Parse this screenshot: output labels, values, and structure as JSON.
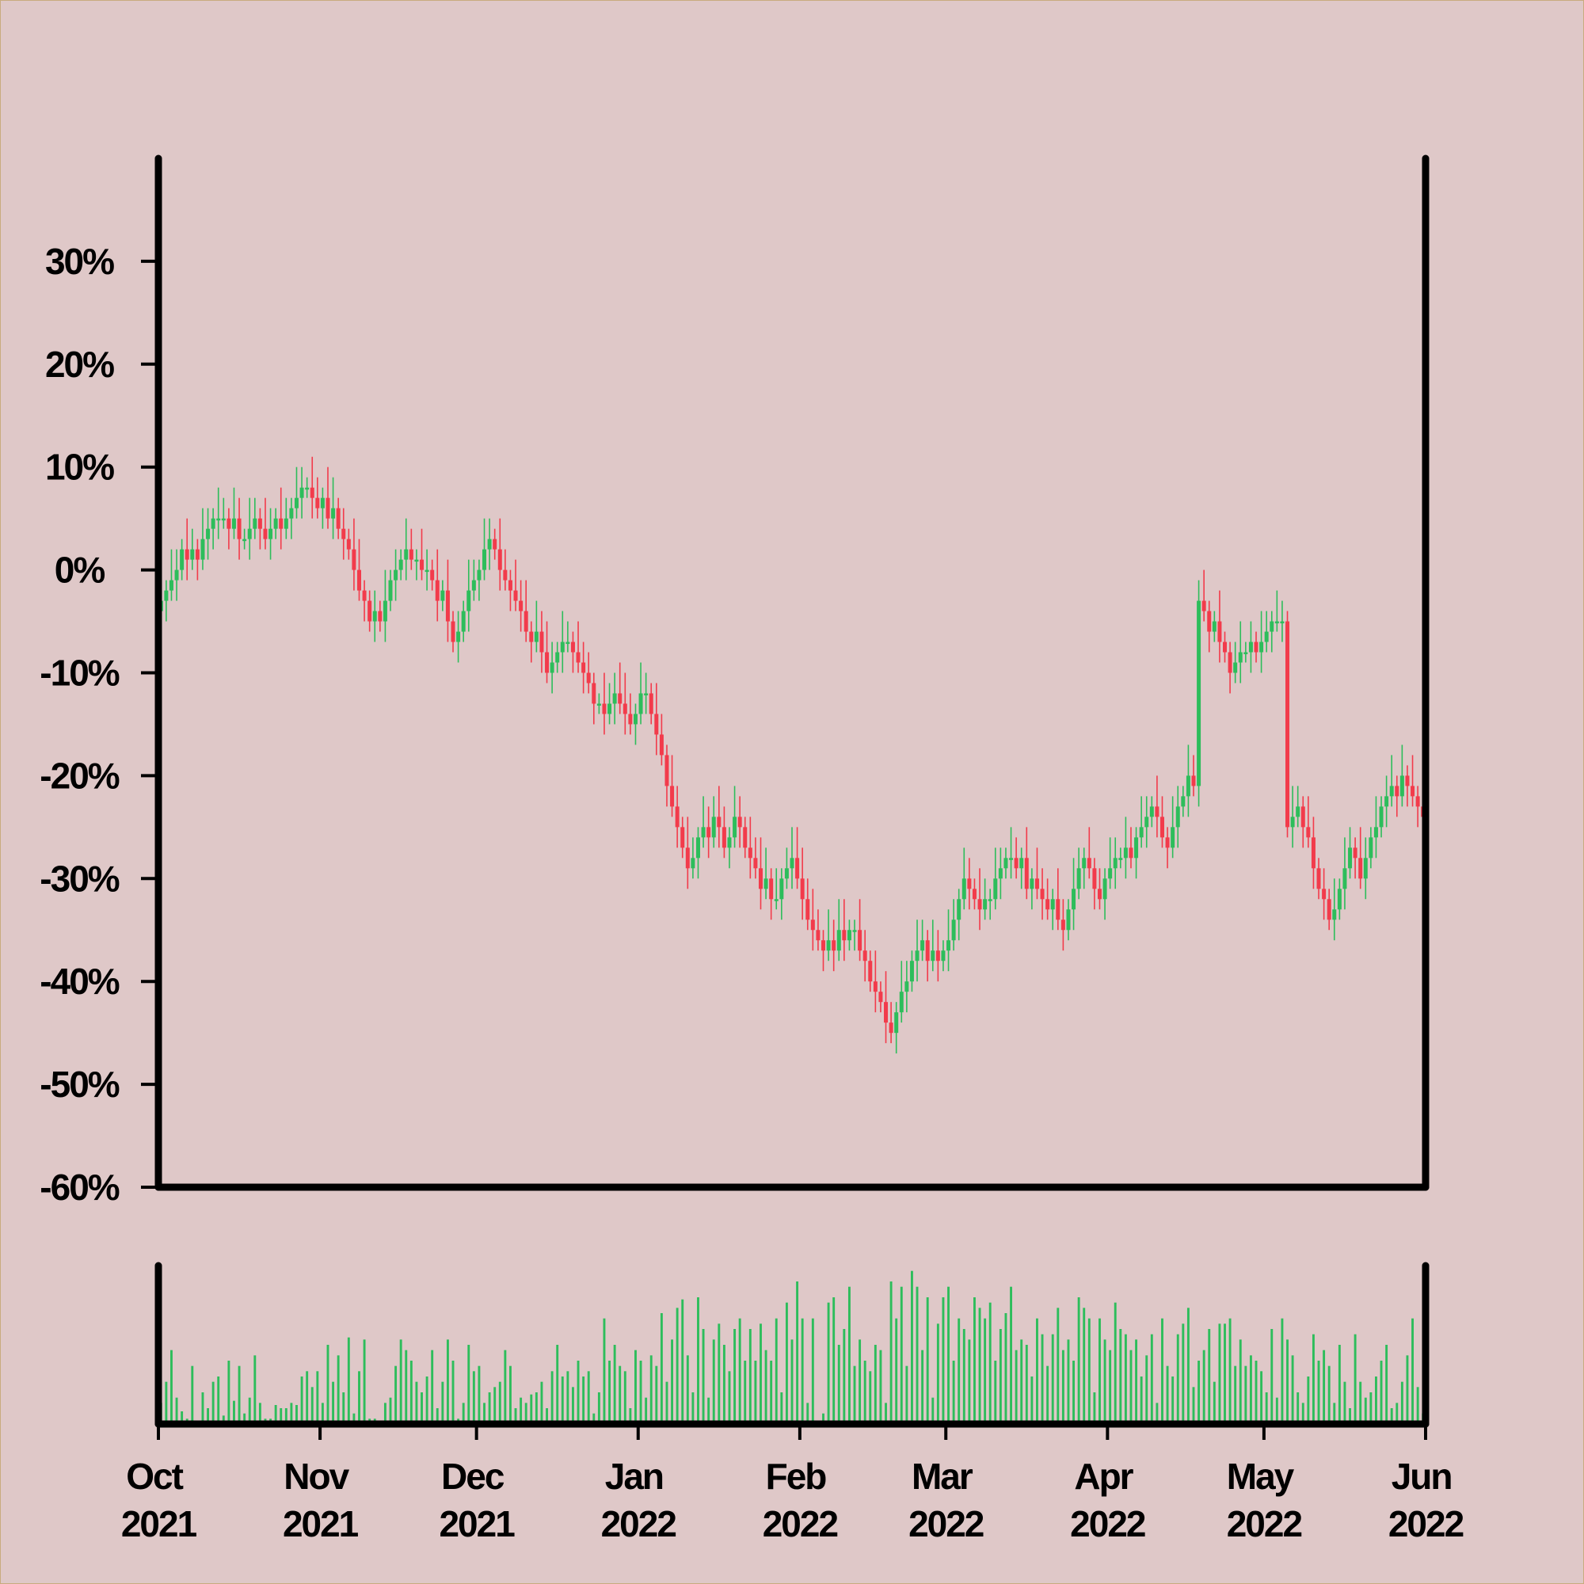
{
  "chart_data": {
    "type": "candlestick",
    "xlim": [
      "2021-10",
      "2022-06"
    ],
    "xticks": [
      {
        "value": "2021-10",
        "label": "Oct 2021"
      },
      {
        "value": "2021-11",
        "label": "Nov 2021"
      },
      {
        "value": "2021-12",
        "label": "Dec 2021"
      },
      {
        "value": "2022-01",
        "label": "Jan 2022"
      },
      {
        "value": "2022-02",
        "label": "Feb 2022"
      },
      {
        "value": "2022-03",
        "label": "Mar 2022"
      },
      {
        "value": "2022-04",
        "label": "Apr 2022"
      },
      {
        "value": "2022-05",
        "label": "May 2022"
      },
      {
        "value": "2022-06",
        "label": "Jun 2022"
      }
    ],
    "ylim": [
      -60,
      40
    ],
    "yticks": [
      {
        "value": -60,
        "label": "-60%"
      },
      {
        "value": -50,
        "label": "-50%"
      },
      {
        "value": -40,
        "label": "-40%"
      },
      {
        "value": -30,
        "label": "-30%"
      },
      {
        "value": -20,
        "label": "-20%"
      },
      {
        "value": -10,
        "label": "-10%"
      },
      {
        "value": 0,
        "label": "0%"
      },
      {
        "value": 10,
        "label": "10%"
      },
      {
        "value": 20,
        "label": "20%"
      },
      {
        "value": 30,
        "label": "30%"
      }
    ],
    "volume_ylim": [
      0,
      150
    ],
    "up_color": "#2dbd5b",
    "down_color": "#f23b4b",
    "volume_color": "#2dbd5b",
    "open": [
      -4,
      -3,
      -2,
      -1,
      0,
      2,
      1,
      2,
      1,
      3,
      4,
      5,
      5,
      5,
      4,
      5,
      3,
      3,
      4,
      5,
      4,
      3,
      4,
      5,
      4,
      5,
      6,
      7,
      8,
      8,
      7,
      6,
      7,
      5,
      6,
      4,
      3,
      2,
      0,
      -2,
      -3,
      -5,
      -4,
      -5,
      -3,
      -1,
      0,
      1,
      2,
      1,
      1,
      0,
      0,
      -1,
      -3,
      -2,
      -5,
      -7,
      -6,
      -4,
      -2,
      -1,
      0,
      2,
      3,
      2,
      0,
      -1,
      -2,
      -3,
      -4,
      -6,
      -7,
      -6,
      -8,
      -10,
      -9,
      -8,
      -7,
      -7,
      -8,
      -9,
      -10,
      -11,
      -13,
      -13,
      -14,
      -13,
      -12,
      -13,
      -14,
      -15,
      -14,
      -12,
      -12,
      -14,
      -16,
      -18,
      -21,
      -23,
      -25,
      -27,
      -29,
      -28,
      -26,
      -25,
      -26,
      -24,
      -25,
      -27,
      -26,
      -24,
      -25,
      -27,
      -28,
      -29,
      -31,
      -30,
      -32,
      -32,
      -30,
      -29,
      -28,
      -30,
      -32,
      -34,
      -35,
      -36,
      -37,
      -36,
      -37,
      -35,
      -36,
      -35,
      -35,
      -37,
      -38,
      -40,
      -41,
      -42,
      -44,
      -45,
      -43,
      -41,
      -40,
      -38,
      -37,
      -36,
      -38,
      -37,
      -38,
      -37,
      -36,
      -34,
      -32,
      -30,
      -31,
      -32,
      -33,
      -32,
      -32,
      -30,
      -29,
      -28,
      -28,
      -29,
      -28,
      -31,
      -30,
      -31,
      -32,
      -33,
      -32,
      -34,
      -35,
      -33,
      -31,
      -29,
      -28,
      -29,
      -31,
      -32,
      -30,
      -29,
      -28,
      -28,
      -27,
      -28,
      -26,
      -25,
      -24,
      -23,
      -24,
      -26,
      -27,
      -25,
      -23,
      -22,
      -20,
      -21,
      -3,
      -4,
      -6,
      -5,
      -7,
      -8,
      -10,
      -9,
      -8,
      -8,
      -7,
      -8,
      -7,
      -6,
      -5,
      -5,
      -5,
      -25,
      -24,
      -23,
      -25,
      -26,
      -29,
      -31,
      -32,
      -34,
      -33,
      -31,
      -29,
      -27,
      -28,
      -30,
      -28,
      -26,
      -25,
      -23,
      -22,
      -21,
      -22,
      -20,
      -21,
      -22,
      -23
    ],
    "high": [
      -1,
      -1,
      2,
      2,
      3,
      5,
      4,
      3,
      6,
      6,
      6,
      8,
      7,
      6,
      8,
      7,
      4,
      7,
      7,
      6,
      7,
      6,
      6,
      8,
      7,
      7,
      10,
      10,
      9,
      11,
      9,
      8,
      10,
      9,
      7,
      6,
      4,
      5,
      3,
      -1,
      -2,
      -2,
      -3,
      0,
      0,
      2,
      2,
      5,
      4,
      2,
      4,
      2,
      1,
      2,
      -1,
      1,
      -4,
      -4,
      -3,
      1,
      1,
      1,
      5,
      5,
      4,
      5,
      2,
      0,
      1,
      -1,
      -1,
      -5,
      -3,
      -4,
      -5,
      -7,
      -7,
      -4,
      -5,
      -6,
      -5,
      -7,
      -8,
      -10,
      -12,
      -10,
      -11,
      -10,
      -9,
      -10,
      -12,
      -13,
      -9,
      -10,
      -11,
      -11,
      -14,
      -17,
      -18,
      -21,
      -24,
      -24,
      -26,
      -25,
      -22,
      -23,
      -22,
      -21,
      -23,
      -25,
      -21,
      -22,
      -24,
      -24,
      -26,
      -26,
      -27,
      -29,
      -29,
      -29,
      -27,
      -25,
      -25,
      -27,
      -30,
      -31,
      -33,
      -35,
      -33,
      -34,
      -32,
      -32,
      -34,
      -34,
      -32,
      -35,
      -37,
      -37,
      -40,
      -39,
      -42,
      -42,
      -38,
      -38,
      -37,
      -34,
      -34,
      -35,
      -34,
      -35,
      -36,
      -33,
      -32,
      -31,
      -27,
      -28,
      -30,
      -29,
      -30,
      -31,
      -27,
      -27,
      -27,
      -25,
      -26,
      -27,
      -25,
      -29,
      -27,
      -29,
      -30,
      -31,
      -29,
      -32,
      -32,
      -28,
      -27,
      -27,
      -25,
      -28,
      -29,
      -29,
      -26,
      -26,
      -27,
      -24,
      -25,
      -25,
      -22,
      -22,
      -22,
      -20,
      -22,
      -25,
      -22,
      -21,
      -21,
      -17,
      -18,
      -1,
      0,
      -3,
      -4,
      -2,
      -6,
      -7,
      -7,
      -5,
      -7,
      -5,
      -6,
      -4,
      -4,
      -4,
      -2,
      -3,
      -4,
      -21,
      -21,
      -22,
      -22,
      -24,
      -28,
      -29,
      -31,
      -30,
      -30,
      -26,
      -25,
      -26,
      -25,
      -26,
      -25,
      -22,
      -22,
      -20,
      -18,
      -20,
      -17,
      -19,
      -18,
      -21,
      -21
    ],
    "low": [
      -5,
      -5,
      -3,
      -3,
      -1,
      -1,
      0,
      -1,
      0,
      1,
      2,
      3,
      4,
      2,
      3,
      1,
      2,
      1,
      3,
      2,
      2,
      1,
      3,
      2,
      3,
      3,
      5,
      5,
      7,
      5,
      5,
      4,
      4,
      3,
      3,
      1,
      1,
      -2,
      -3,
      -5,
      -6,
      -7,
      -6,
      -7,
      -4,
      -3,
      -1,
      -1,
      0,
      -1,
      -1,
      -2,
      -2,
      -5,
      -4,
      -7,
      -8,
      -9,
      -7,
      -6,
      -3,
      -3,
      -1,
      0,
      1,
      -2,
      -2,
      -4,
      -4,
      -6,
      -7,
      -9,
      -8,
      -10,
      -11,
      -12,
      -10,
      -10,
      -8,
      -10,
      -10,
      -12,
      -12,
      -15,
      -14,
      -16,
      -15,
      -15,
      -14,
      -16,
      -16,
      -17,
      -15,
      -14,
      -15,
      -18,
      -19,
      -23,
      -24,
      -27,
      -28,
      -31,
      -30,
      -30,
      -27,
      -28,
      -27,
      -27,
      -28,
      -29,
      -27,
      -27,
      -28,
      -30,
      -30,
      -33,
      -32,
      -34,
      -33,
      -34,
      -31,
      -31,
      -31,
      -34,
      -35,
      -37,
      -37,
      -39,
      -38,
      -39,
      -38,
      -38,
      -37,
      -37,
      -38,
      -40,
      -41,
      -43,
      -43,
      -46,
      -46,
      -47,
      -44,
      -43,
      -41,
      -40,
      -38,
      -40,
      -39,
      -40,
      -39,
      -39,
      -37,
      -36,
      -33,
      -33,
      -33,
      -35,
      -34,
      -34,
      -33,
      -32,
      -30,
      -30,
      -30,
      -31,
      -32,
      -33,
      -32,
      -34,
      -34,
      -35,
      -35,
      -37,
      -36,
      -35,
      -32,
      -31,
      -30,
      -33,
      -33,
      -34,
      -31,
      -31,
      -29,
      -30,
      -29,
      -30,
      -27,
      -27,
      -25,
      -26,
      -27,
      -29,
      -28,
      -27,
      -24,
      -24,
      -22,
      -23,
      -5,
      -8,
      -7,
      -9,
      -9,
      -12,
      -11,
      -11,
      -9,
      -10,
      -9,
      -10,
      -8,
      -8,
      -6,
      -7,
      -26,
      -27,
      -25,
      -27,
      -27,
      -31,
      -32,
      -34,
      -35,
      -36,
      -34,
      -33,
      -30,
      -30,
      -31,
      -32,
      -29,
      -28,
      -26,
      -25,
      -23,
      -24,
      -23,
      -23,
      -23,
      -25,
      -26
    ],
    "close": [
      -3,
      -2,
      -1,
      0,
      2,
      1,
      2,
      1,
      3,
      4,
      5,
      5,
      5,
      4,
      5,
      3,
      3,
      4,
      5,
      4,
      3,
      4,
      5,
      4,
      5,
      6,
      7,
      8,
      8,
      7,
      6,
      7,
      5,
      6,
      4,
      3,
      2,
      0,
      -2,
      -3,
      -5,
      -4,
      -5,
      -3,
      -1,
      0,
      1,
      2,
      1,
      1,
      0,
      0,
      -1,
      -3,
      -2,
      -5,
      -7,
      -6,
      -4,
      -2,
      -1,
      0,
      2,
      3,
      2,
      0,
      -1,
      -2,
      -3,
      -4,
      -6,
      -7,
      -6,
      -8,
      -10,
      -9,
      -8,
      -7,
      -7,
      -8,
      -9,
      -10,
      -11,
      -13,
      -13,
      -14,
      -13,
      -12,
      -13,
      -14,
      -15,
      -14,
      -12,
      -12,
      -14,
      -16,
      -18,
      -21,
      -23,
      -25,
      -27,
      -29,
      -28,
      -26,
      -25,
      -26,
      -24,
      -25,
      -27,
      -26,
      -24,
      -25,
      -27,
      -28,
      -29,
      -31,
      -30,
      -32,
      -32,
      -30,
      -29,
      -28,
      -30,
      -32,
      -34,
      -35,
      -36,
      -37,
      -36,
      -37,
      -35,
      -36,
      -35,
      -35,
      -37,
      -38,
      -40,
      -41,
      -42,
      -44,
      -45,
      -43,
      -41,
      -40,
      -38,
      -37,
      -36,
      -38,
      -37,
      -38,
      -37,
      -36,
      -34,
      -32,
      -30,
      -31,
      -32,
      -33,
      -32,
      -32,
      -30,
      -29,
      -28,
      -28,
      -29,
      -28,
      -31,
      -30,
      -31,
      -32,
      -33,
      -32,
      -34,
      -35,
      -33,
      -31,
      -29,
      -28,
      -29,
      -31,
      -32,
      -30,
      -29,
      -28,
      -28,
      -27,
      -28,
      -26,
      -25,
      -24,
      -23,
      -24,
      -26,
      -27,
      -25,
      -23,
      -22,
      -20,
      -21,
      -3,
      -4,
      -6,
      -5,
      -7,
      -8,
      -10,
      -9,
      -8,
      -8,
      -7,
      -8,
      -7,
      -6,
      -5,
      -5,
      -5,
      -25,
      -24,
      -23,
      -25,
      -26,
      -29,
      -31,
      -32,
      -34,
      -33,
      -31,
      -29,
      -27,
      -28,
      -30,
      -28,
      -26,
      -25,
      -23,
      -22,
      -21,
      -22,
      -20,
      -21,
      -22,
      -23,
      -24
    ],
    "volume": [
      20,
      40,
      70,
      25,
      12,
      5,
      55,
      3,
      30,
      15,
      40,
      45,
      8,
      60,
      22,
      55,
      10,
      25,
      65,
      20,
      5,
      5,
      18,
      15,
      15,
      20,
      18,
      45,
      50,
      35,
      50,
      20,
      75,
      40,
      65,
      30,
      82,
      10,
      50,
      80,
      5,
      5,
      0,
      20,
      25,
      55,
      80,
      70,
      60,
      40,
      30,
      45,
      70,
      15,
      40,
      80,
      60,
      5,
      20,
      75,
      50,
      55,
      20,
      30,
      35,
      40,
      70,
      55,
      15,
      25,
      20,
      28,
      30,
      40,
      15,
      50,
      75,
      45,
      50,
      35,
      60,
      45,
      50,
      10,
      30,
      100,
      60,
      75,
      55,
      50,
      15,
      70,
      60,
      25,
      65,
      55,
      105,
      40,
      80,
      110,
      118,
      65,
      30,
      120,
      90,
      25,
      80,
      95,
      75,
      50,
      90,
      100,
      60,
      90,
      60,
      95,
      70,
      60,
      100,
      30,
      115,
      80,
      135,
      100,
      20,
      100,
      0,
      10,
      115,
      120,
      75,
      90,
      130,
      55,
      80,
      60,
      50,
      75,
      70,
      20,
      135,
      100,
      130,
      55,
      145,
      130,
      70,
      120,
      25,
      95,
      120,
      130,
      60,
      100,
      90,
      80,
      120,
      110,
      100,
      115,
      60,
      90,
      105,
      130,
      70,
      80,
      75,
      45,
      100,
      85,
      55,
      85,
      110,
      70,
      80,
      60,
      120,
      110,
      100,
      30,
      100,
      80,
      70,
      115,
      90,
      85,
      70,
      80,
      45,
      65,
      85,
      20,
      100,
      55,
      45,
      85,
      95,
      110,
      35,
      60,
      70,
      90,
      40,
      95,
      95,
      100,
      55,
      80,
      55,
      65,
      60,
      50,
      30,
      90,
      25,
      100,
      80,
      65,
      30,
      20,
      45,
      85,
      60,
      70,
      55,
      20,
      75,
      40,
      15,
      85,
      40,
      25,
      30,
      45,
      60,
      75,
      15,
      20,
      40,
      65,
      100,
      35,
      10
    ]
  }
}
